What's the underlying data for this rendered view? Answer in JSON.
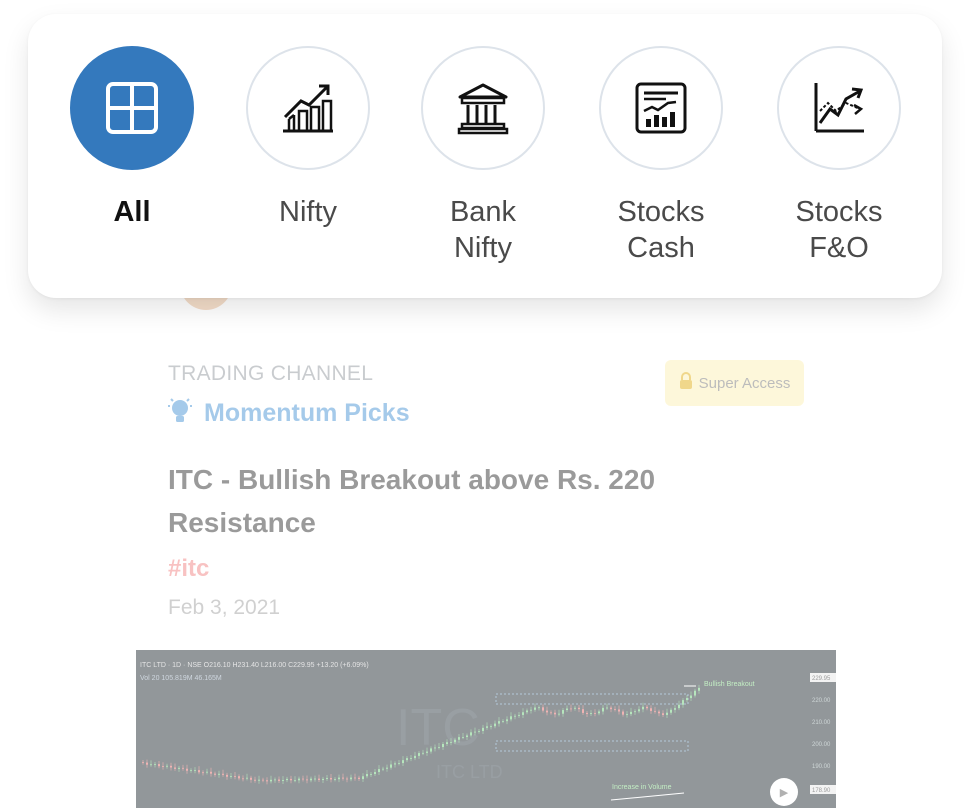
{
  "filters": [
    {
      "label": "All",
      "icon": "grid-icon",
      "active": true
    },
    {
      "label": "Nifty",
      "icon": "chart-growth-icon",
      "active": false
    },
    {
      "label": "Bank\nNifty",
      "icon": "bank-icon",
      "active": false
    },
    {
      "label": "Stocks\nCash",
      "icon": "stock-report-icon",
      "active": false
    },
    {
      "label": "Stocks\nF&O",
      "icon": "trend-chart-icon",
      "active": false
    }
  ],
  "post": {
    "channel_label": "TRADING CHANNEL",
    "channel_name": "Momentum Picks",
    "badge": "Super Access",
    "title": "ITC - Bullish Breakout above Rs. 220 Resistance",
    "tag": "#itc",
    "date": "Feb 3, 2021"
  },
  "chart_image": {
    "header": "ITC LTD · 1D · NSE  O216.10 H231.40 L216.00 C229.95 +13.20 (+6.09%)",
    "volume_line": "Vol 20  105.819M  46.165M",
    "watermark": "ITC",
    "watermark_sub": "ITC LTD",
    "annotation_breakout": "Bullish Breakout",
    "annotation_volume": "Increase in Volume",
    "price_labels": [
      "229.95",
      "220.00",
      "210.00",
      "200.00",
      "190.00",
      "178.90"
    ]
  },
  "colors": {
    "accent": "#3479bd",
    "channel": "#3a8bd1",
    "badge_bg": "#fcefae",
    "tag": "#f07a7a"
  }
}
